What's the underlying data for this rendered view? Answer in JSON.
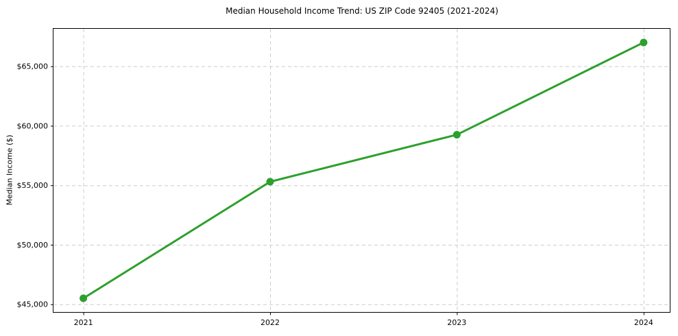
{
  "chart_data": {
    "type": "line",
    "title": "Median Household Income Trend: US ZIP Code 92405 (2021-2024)",
    "xlabel": "",
    "ylabel": "Median Income ($)",
    "x": [
      2021,
      2022,
      2023,
      2024
    ],
    "series": [
      {
        "name": "Median Household Income",
        "values": [
          45500,
          55300,
          59250,
          67000
        ]
      }
    ],
    "xticks": [
      {
        "value": 2021,
        "label": "2021"
      },
      {
        "value": 2022,
        "label": "2022"
      },
      {
        "value": 2023,
        "label": "2023"
      },
      {
        "value": 2024,
        "label": "2024"
      }
    ],
    "yticks": [
      {
        "value": 45000,
        "label": "$45,000"
      },
      {
        "value": 50000,
        "label": "$50,000"
      },
      {
        "value": 55000,
        "label": "$55,000"
      },
      {
        "value": 60000,
        "label": "$60,000"
      },
      {
        "value": 65000,
        "label": "$65,000"
      }
    ],
    "xlim": [
      2020.84,
      2024.14
    ],
    "ylim": [
      44350,
      68150
    ],
    "grid": true,
    "grid_style": "dashed",
    "legend": "none",
    "colors": {
      "line": "#2ca02c",
      "marker": "#2ca02c",
      "grid": "#cccccc",
      "spine": "#000000",
      "text": "#000000",
      "background": "#ffffff"
    }
  }
}
